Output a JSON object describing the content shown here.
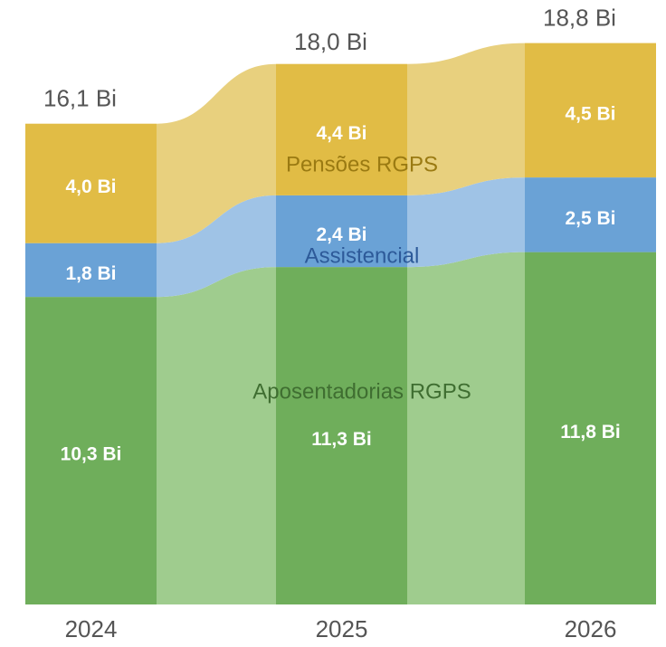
{
  "chart_data": {
    "type": "ribbon",
    "categories": [
      "2024",
      "2025",
      "2026"
    ],
    "series": [
      {
        "name": "Aposentadorias RGPS",
        "color": "#6fae5b",
        "ribbon_color": "#9fcc8e",
        "label_color": "#3f6e31",
        "values": [
          10.3,
          11.3,
          11.8
        ],
        "value_labels": [
          "10,3 Bi",
          "11,3 Bi",
          "11,8 Bi"
        ]
      },
      {
        "name": "Assistencial",
        "color": "#6aa2d6",
        "ribbon_color": "#9fc3e6",
        "label_color": "#2d5a99",
        "values": [
          1.8,
          2.4,
          2.5
        ],
        "value_labels": [
          "1,8 Bi",
          "2,4 Bi",
          "2,5 Bi"
        ]
      },
      {
        "name": "Pensões RGPS",
        "color": "#e1bc45",
        "ribbon_color": "#e8d07e",
        "label_color": "#9a7a12",
        "values": [
          4.0,
          4.4,
          4.5
        ],
        "value_labels": [
          "4,0 Bi",
          "4,4 Bi",
          "4,5 Bi"
        ]
      }
    ],
    "totals": [
      16.1,
      18.0,
      18.8
    ],
    "total_labels": [
      "16,1 Bi",
      "18,0 Bi",
      "18,8 Bi"
    ]
  }
}
